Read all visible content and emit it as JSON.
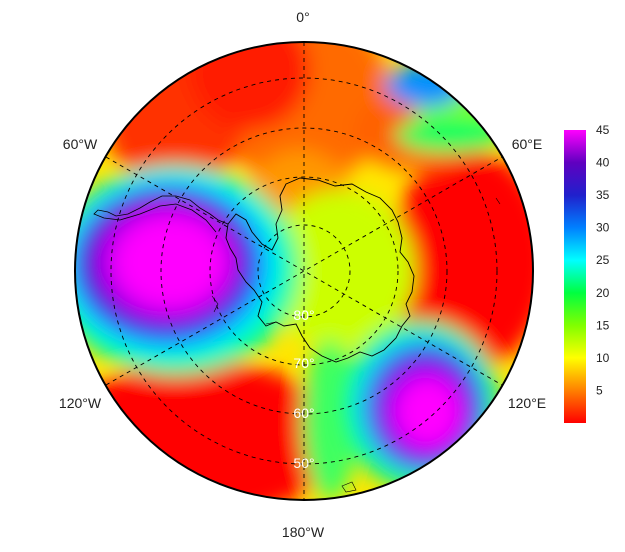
{
  "map": {
    "projection": "south-polar-stereographic",
    "longitude_labels": {
      "top": "0°",
      "upper_left": "60°W",
      "upper_right": "60°E",
      "lower_left": "120°W",
      "lower_right": "120°E",
      "bottom": "180°W"
    },
    "latitude_labels": [
      "80°",
      "70°",
      "60°",
      "50°"
    ],
    "graticule": {
      "latitudes": [
        80,
        70,
        60,
        50
      ],
      "longitude_step": 60,
      "style": "dashed"
    },
    "field": {
      "description_units": "colour-scaled values 0–45",
      "features": [
        {
          "region": "Antarctic Peninsula / Bellingshausen–Weddell sector",
          "level": "high (~40–45)"
        },
        {
          "region": "Ross Sea / 150°E sector",
          "level": "high (~40–45)"
        },
        {
          "region": "Indian Ocean sector 60°E–100°E",
          "level": "low (~0–5)"
        },
        {
          "region": "Pacific sector near 150°W–180°",
          "level": "low (~0–5)"
        },
        {
          "region": "East Antarctica interior",
          "level": "moderate (~10–15)"
        }
      ]
    }
  },
  "colorbar": {
    "ticks": [
      "45",
      "40",
      "35",
      "30",
      "25",
      "20",
      "15",
      "10",
      "5"
    ],
    "min": 0,
    "max": 45,
    "colors": [
      "#ff0000",
      "#ff8000",
      "#ffff00",
      "#80ff00",
      "#00ff40",
      "#00ffff",
      "#0080ff",
      "#2020cc",
      "#6000c0",
      "#ff00ff"
    ]
  }
}
